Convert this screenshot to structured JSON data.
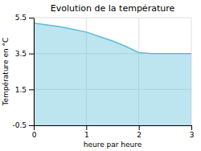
{
  "chart_data": {
    "type": "area",
    "title": "Evolution de la température",
    "x_label": "heure par heure",
    "y_label": "Température en °C",
    "x": [
      0,
      0.25,
      0.5,
      0.75,
      1.0,
      1.25,
      1.5,
      1.75,
      2.0,
      2.25,
      2.5,
      2.75,
      3.0
    ],
    "values": [
      5.2,
      5.1,
      5.0,
      4.85,
      4.7,
      4.45,
      4.2,
      3.9,
      3.55,
      3.5,
      3.5,
      3.5,
      3.5
    ],
    "color": "#5bbfd6",
    "xlim": [
      0,
      3
    ],
    "ylim": [
      -0.5,
      5.5
    ],
    "xticks": [
      0,
      1,
      2,
      3
    ],
    "yticks": [
      -0.5,
      1.5,
      3.5,
      5.5
    ],
    "grid": true
  }
}
